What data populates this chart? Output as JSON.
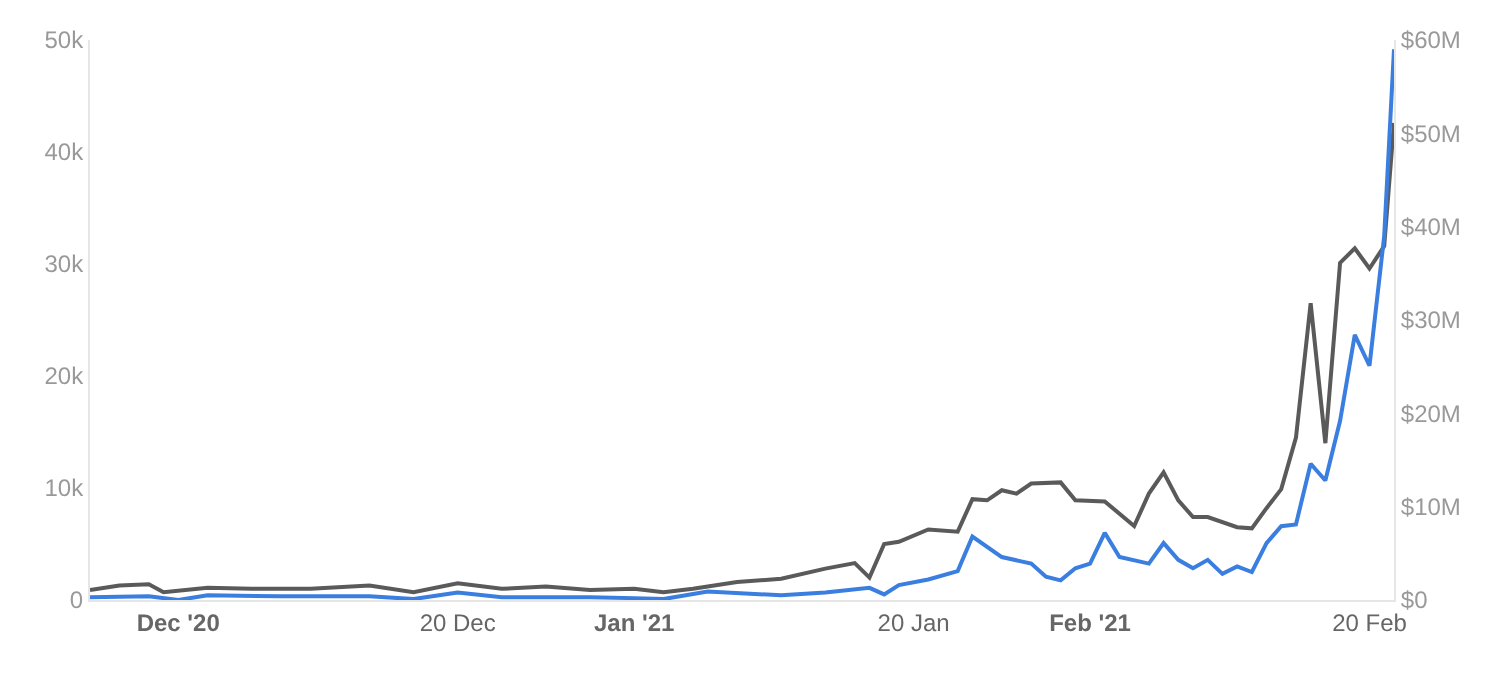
{
  "chart_data": {
    "type": "line",
    "xlim": [
      "2020-11-25",
      "2021-02-21T16:00"
    ],
    "xticks": [
      {
        "value": "2020-12-01",
        "label": "Dec '20"
      },
      {
        "value": "2020-12-20",
        "label": "20 Dec"
      },
      {
        "value": "2021-01-01",
        "label": "Jan '21"
      },
      {
        "value": "2021-01-20",
        "label": "20 Jan"
      },
      {
        "value": "2021-02-01",
        "label": "Feb '21"
      },
      {
        "value": "2021-02-20",
        "label": "20 Feb"
      }
    ],
    "ylim": [
      0,
      50000
    ],
    "yticks": [
      0,
      {
        "value": 10000,
        "label": "10k"
      },
      {
        "value": 20000,
        "label": "20k"
      },
      {
        "value": 30000,
        "label": "30k"
      },
      {
        "value": 40000,
        "label": "40k"
      },
      {
        "value": 50000,
        "label": "50k"
      }
    ],
    "y2lim": [
      0,
      60
    ],
    "y2ticks": [
      {
        "value": 0,
        "label": "$0"
      },
      {
        "value": 10,
        "label": "$10M"
      },
      {
        "value": 20,
        "label": "$20M"
      },
      {
        "value": 30,
        "label": "$30M"
      },
      {
        "value": 40,
        "label": "$40M"
      },
      {
        "value": 50,
        "label": "$50M"
      },
      {
        "value": 60,
        "label": "$60M"
      }
    ],
    "legend": false,
    "marker": "none",
    "line_style": "solid",
    "series": [
      {
        "color": "#5a5a5a",
        "x": [
          "2020-11-25",
          "2020-11-27",
          "2020-11-29",
          "2020-11-30",
          "2020-12-03",
          "2020-12-06",
          "2020-12-10",
          "2020-12-14",
          "2020-12-17",
          "2020-12-20",
          "2020-12-23",
          "2020-12-26",
          "2020-12-29",
          "2021-01-01",
          "2021-01-03",
          "2021-01-05",
          "2021-01-08",
          "2021-01-11",
          "2021-01-14",
          "2021-01-16",
          "2021-01-17",
          "2021-01-18",
          "2021-01-19",
          "2021-01-21",
          "2021-01-23",
          "2021-01-24",
          "2021-01-25",
          "2021-01-26",
          "2021-01-27",
          "2021-01-28",
          "2021-01-30",
          "2021-01-31",
          "2021-02-02",
          "2021-02-04",
          "2021-02-05",
          "2021-02-06",
          "2021-02-07",
          "2021-02-08",
          "2021-02-09",
          "2021-02-11",
          "2021-02-12",
          "2021-02-13",
          "2021-02-14",
          "2021-02-15",
          "2021-02-16",
          "2021-02-17",
          "2021-02-18",
          "2021-02-19",
          "2021-02-20",
          "2021-02-21",
          "2021-02-21T16:00"
        ],
        "values": [
          900,
          1300,
          1400,
          700,
          1100,
          1000,
          1000,
          1300,
          700,
          1500,
          1000,
          1200,
          900,
          1000,
          700,
          1000,
          1600,
          1900,
          2800,
          3300,
          2000,
          5000,
          5200,
          6300,
          6100,
          9000,
          8900,
          9800,
          9500,
          10400,
          10500,
          8900,
          8800,
          6600,
          9500,
          11400,
          8900,
          7400,
          7400,
          6500,
          6400,
          8200,
          9900,
          14500,
          26500,
          14000,
          30100,
          31400,
          29600,
          31600,
          42600
        ]
      },
      {
        "color": "#3a7ee0",
        "axis": "y2",
        "x": [
          "2020-11-25",
          "2020-11-29",
          "2020-12-01",
          "2020-12-03",
          "2020-12-08",
          "2020-12-14",
          "2020-12-17",
          "2020-12-20",
          "2020-12-23",
          "2020-12-29",
          "2021-01-01",
          "2021-01-03",
          "2021-01-06",
          "2021-01-11",
          "2021-01-14",
          "2021-01-17",
          "2021-01-18",
          "2021-01-19",
          "2021-01-21",
          "2021-01-23",
          "2021-01-24",
          "2021-01-26",
          "2021-01-28",
          "2021-01-29",
          "2021-01-30",
          "2021-01-31",
          "2021-02-01",
          "2021-02-02",
          "2021-02-03",
          "2021-02-05",
          "2021-02-06",
          "2021-02-07",
          "2021-02-08",
          "2021-02-09",
          "2021-02-10",
          "2021-02-11",
          "2021-02-12",
          "2021-02-13",
          "2021-02-14",
          "2021-02-15",
          "2021-02-16",
          "2021-02-17",
          "2021-02-18",
          "2021-02-19",
          "2021-02-20",
          "2021-02-21",
          "2021-02-21T16:00"
        ],
        "values": [
          0.3,
          0.4,
          0,
          0.5,
          0.4,
          0.4,
          0.1,
          0.8,
          0.3,
          0.3,
          0.2,
          0.1,
          0.9,
          0.5,
          0.8,
          1.3,
          0.6,
          1.6,
          2.2,
          3.1,
          6.8,
          4.6,
          3.9,
          2.5,
          2.1,
          3.4,
          3.9,
          7.2,
          4.6,
          3.9,
          6.1,
          4.3,
          3.4,
          4.3,
          2.8,
          3.6,
          3.0,
          6.1,
          7.9,
          8.1,
          14.6,
          12.8,
          19.2,
          28.4,
          25.1,
          39,
          59
        ]
      }
    ]
  }
}
